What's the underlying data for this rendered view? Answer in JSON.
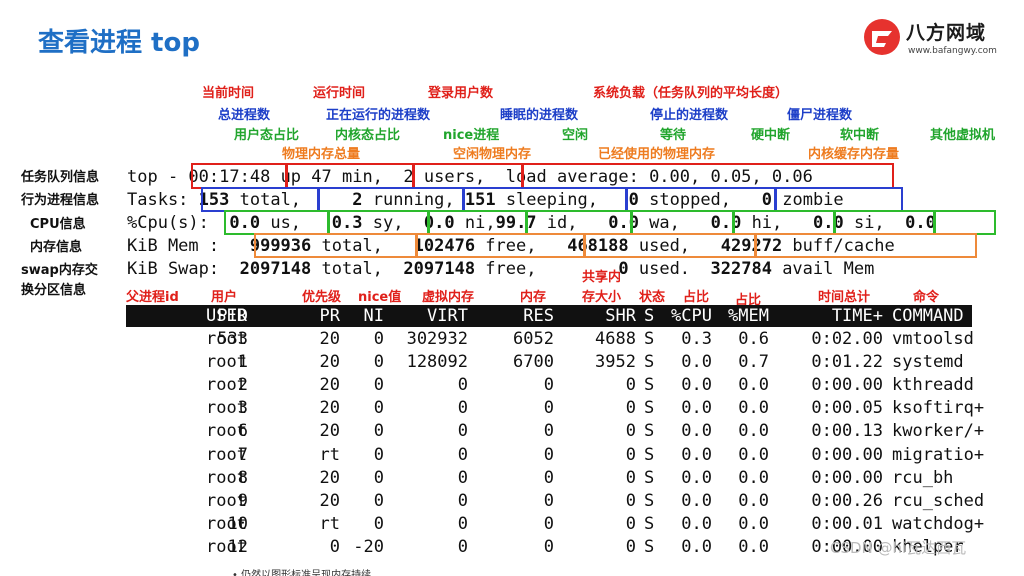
{
  "title": "查看进程 top",
  "logo": {
    "name": "八方网域",
    "url": "www.bafangwy.com"
  },
  "annotations": {
    "current_time": "当前时间",
    "uptime": "运行时间",
    "logged_users": "登录用户数",
    "load_average": "系统负载（任务队列的平均长度）",
    "total_procs": "总进程数",
    "running_procs": "正在运行的进程数",
    "sleeping_procs": "睡眠的进程数",
    "stopped_procs": "停止的进程数",
    "zombie_procs": "僵尸进程数",
    "user_cpu": "用户态占比",
    "kernel_cpu": "内核态占比",
    "nice_cpu": "nice进程",
    "idle_cpu": "空闲",
    "wait_cpu": "等待",
    "hard_irq": "硬中断",
    "soft_irq": "软中断",
    "steal": "其他虚拟机",
    "mem_total": "物理内存总量",
    "mem_free": "空闲物理内存",
    "mem_used": "已经使用的物理内存",
    "mem_cache": "内核缓存内存量",
    "col_ppid": "父进程id",
    "col_user": "用户",
    "col_pr": "优先级",
    "col_ni": "nice值",
    "col_virt": "虚拟内存",
    "col_res": "内存",
    "col_shr_1": "共享内",
    "col_shr_2": "存大小",
    "col_s": "状态",
    "col_cpu": "占比",
    "col_mem": "占比",
    "col_time": "时间总计",
    "col_cmd": "命令"
  },
  "side_labels": {
    "task_queue": "任务队列信息",
    "process": "行为进程信息",
    "cpu": "CPU信息",
    "mem": "内存信息",
    "swap_1": "swap内存交",
    "swap_2": "换分区信息"
  },
  "summary": {
    "l1_prefix": "top - ",
    "time": "00:17:48",
    "uptime": "up 47 min,",
    "users": "2 users,",
    "load": "load average: 0.00, 0.05, 0.06",
    "l2_prefix": "Tasks:",
    "tasks_total_num": "153",
    "tasks_total_lbl": " total,",
    "tasks_running_num": "2",
    "tasks_running_lbl": " running,",
    "tasks_sleeping_num": "151",
    "tasks_sleeping_lbl": " sleeping,",
    "tasks_stopped_num": "0",
    "tasks_stopped_lbl": " stopped,",
    "tasks_zombie_num": "0",
    "tasks_zombie_lbl": " zombie",
    "l3_prefix": "%Cpu(s):",
    "cpu_us_num": "0.0",
    "cpu_us_lbl": " us,",
    "cpu_sy_num": "0.3",
    "cpu_sy_lbl": " sy,",
    "cpu_ni_num": "0.0",
    "cpu_ni_lbl": " ni,",
    "cpu_id_num": "99.7",
    "cpu_id_lbl": " id,",
    "cpu_wa_num": "0.0",
    "cpu_wa_lbl": " wa,",
    "cpu_hi_num": "0.0",
    "cpu_hi_lbl": " hi,",
    "cpu_si_num": "0.0",
    "cpu_si_lbl": " si,",
    "cpu_st_num": "0.0",
    "l4_prefix": "KiB Mem :",
    "mem_total_num": "999936",
    "mem_total_lbl": " total,",
    "mem_free_num": "102476",
    "mem_free_lbl": " free,",
    "mem_used_num": "468188",
    "mem_used_lbl": " used,",
    "mem_cache_num": "429272",
    "mem_cache_lbl": " buff/cache",
    "l5_prefix": "KiB Swap:",
    "swap_total_num": "2097148",
    "swap_total_lbl": " total,",
    "swap_free_num": "2097148",
    "swap_free_lbl": " free,",
    "swap_used_num": "0",
    "swap_used_lbl": " used.",
    "avail_num": "322784",
    "avail_lbl": " avail Mem"
  },
  "columns": [
    "PID",
    "USER",
    "PR",
    "NI",
    "VIRT",
    "RES",
    "SHR",
    "S",
    "%CPU",
    "%MEM",
    "TIME+",
    "COMMAND"
  ],
  "processes": [
    [
      "533",
      "root",
      "20",
      "0",
      "302932",
      "6052",
      "4688",
      "S",
      "0.3",
      "0.6",
      "0:02.00",
      "vmtoolsd"
    ],
    [
      "1",
      "root",
      "20",
      "0",
      "128092",
      "6700",
      "3952",
      "S",
      "0.0",
      "0.7",
      "0:01.22",
      "systemd"
    ],
    [
      "2",
      "root",
      "20",
      "0",
      "0",
      "0",
      "0",
      "S",
      "0.0",
      "0.0",
      "0:00.00",
      "kthreadd"
    ],
    [
      "3",
      "root",
      "20",
      "0",
      "0",
      "0",
      "0",
      "S",
      "0.0",
      "0.0",
      "0:00.05",
      "ksoftirq+"
    ],
    [
      "6",
      "root",
      "20",
      "0",
      "0",
      "0",
      "0",
      "S",
      "0.0",
      "0.0",
      "0:00.13",
      "kworker/+"
    ],
    [
      "7",
      "root",
      "rt",
      "0",
      "0",
      "0",
      "0",
      "S",
      "0.0",
      "0.0",
      "0:00.00",
      "migratio+"
    ],
    [
      "8",
      "root",
      "20",
      "0",
      "0",
      "0",
      "0",
      "S",
      "0.0",
      "0.0",
      "0:00.00",
      "rcu_bh"
    ],
    [
      "9",
      "root",
      "20",
      "0",
      "0",
      "0",
      "0",
      "S",
      "0.0",
      "0.0",
      "0:00.26",
      "rcu_sched"
    ],
    [
      "10",
      "root",
      "rt",
      "0",
      "0",
      "0",
      "0",
      "S",
      "0.0",
      "0.0",
      "0:00.01",
      "watchdog+"
    ],
    [
      "12",
      "root",
      "0",
      "-20",
      "0",
      "0",
      "0",
      "S",
      "0.0",
      "0.0",
      "0:00.00",
      "khelper"
    ]
  ],
  "watermark": "CSDN @hi瓦达西瓦",
  "footer_cutoff": "• 仍然以图形标准呈现内存持续"
}
